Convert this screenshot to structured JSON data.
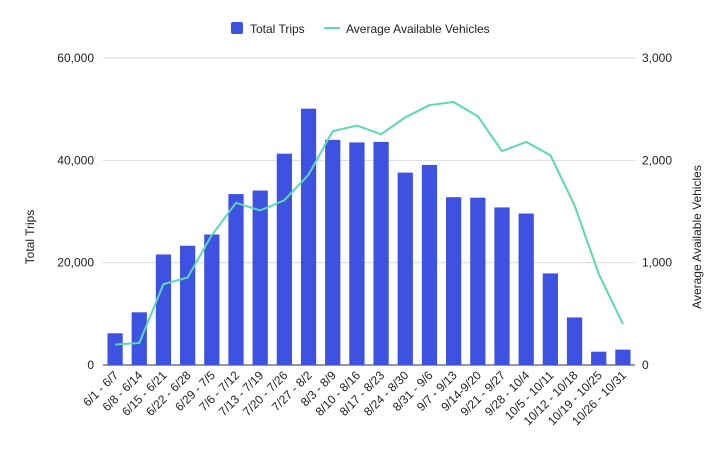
{
  "chart_data": {
    "type": "bar",
    "categories": [
      "6/1 - 6/7",
      "6/8 - 6/14",
      "6/15 - 6/21",
      "6/22 - 6/28",
      "6/29 - 7/5",
      "7/6 - 7/12",
      "7/13 - 7/19",
      "7/20 - 7/26",
      "7/27 - 8/2",
      "8/3 - 8/9",
      "8/10 - 8/16",
      "8/17 - 8/23",
      "8/24 - 8/30",
      "8/31 - 9/6",
      "9/7 - 9/13",
      "9/14-9/20",
      "9/21 - 9/27",
      "9/28 - 10/4",
      "10/5 - 10/11",
      "10/12 - 10/18",
      "10/19 - 10/25",
      "10/26 - 10/31"
    ],
    "series": [
      {
        "name": "Total Trips",
        "type": "bar",
        "axis": "left",
        "color": "#3d52e0",
        "values": [
          6200,
          10300,
          21600,
          23300,
          25500,
          33400,
          34100,
          41300,
          50100,
          44000,
          43500,
          43600,
          37600,
          39100,
          32800,
          32700,
          30800,
          29600,
          17900,
          9300,
          2600,
          3000
        ]
      },
      {
        "name": "Average Available Vehicles",
        "type": "line",
        "axis": "right",
        "color": "#5dd8b5",
        "values": [
          200,
          215,
          790,
          855,
          1270,
          1585,
          1510,
          1610,
          1860,
          2285,
          2340,
          2255,
          2420,
          2540,
          2570,
          2430,
          2090,
          2180,
          2050,
          1560,
          890,
          400
        ]
      }
    ],
    "ylabel": "Total Trips",
    "y2label": "Average Available Vehicles",
    "ylim": [
      0,
      60000
    ],
    "y2lim": [
      0,
      3000
    ],
    "yticks": [
      "0",
      "20,000",
      "40,000",
      "60,000"
    ],
    "y2ticks": [
      "0",
      "1,000",
      "2,000",
      "3,000"
    ],
    "legend": "top-center",
    "grid": true
  }
}
